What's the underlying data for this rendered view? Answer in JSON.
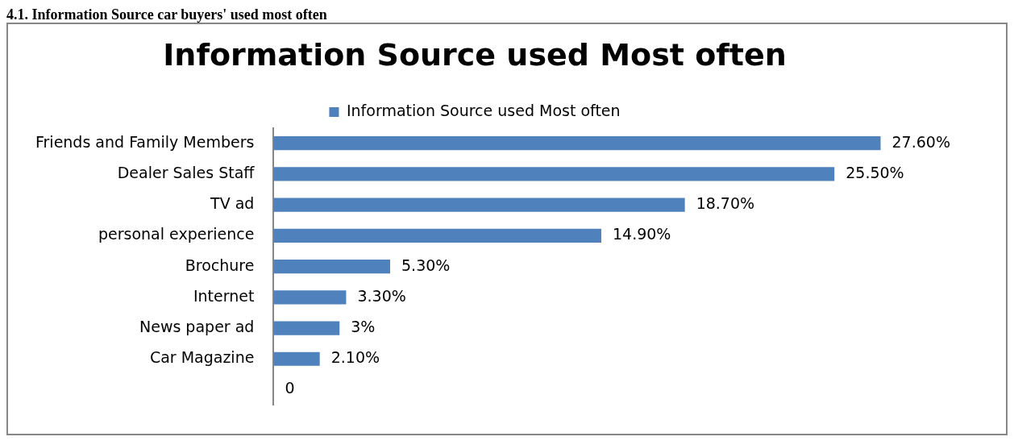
{
  "chart_data": {
    "type": "bar",
    "orientation": "horizontal",
    "title": "Information Source used Most often",
    "annotations": [
      "4.1. Information Source car buyers' used most often"
    ],
    "categories": [
      "Friends and Family Members",
      "Dealer Sales Staff",
      "TV ad",
      "personal experience",
      "Brochure",
      "Internet",
      "News paper ad",
      "Car Magazine",
      null
    ],
    "series": [
      {
        "name": "Information Source used Most often",
        "color": "#4f81bd",
        "values": [
          27.6,
          25.5,
          18.7,
          14.9,
          5.3,
          3.3,
          3,
          2.1,
          0
        ],
        "value_labels": [
          "27.60%",
          "25.50%",
          "18.70%",
          "14.90%",
          "5.30%",
          "3.30%",
          "3%",
          "2.10%",
          "0"
        ]
      }
    ],
    "tick_labels": "y",
    "grid": false,
    "legend": "top"
  }
}
